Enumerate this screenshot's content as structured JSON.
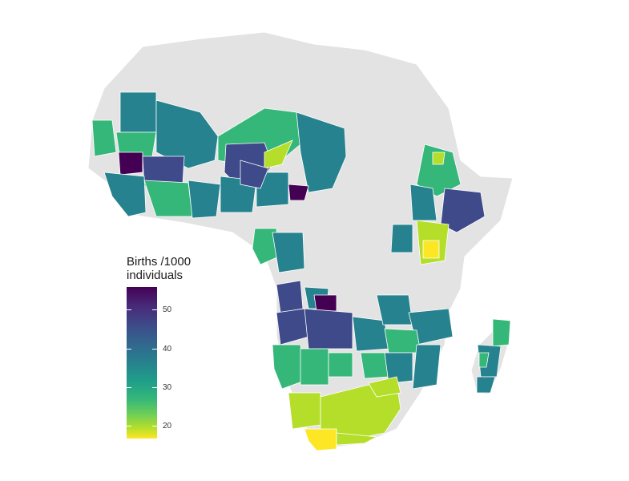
{
  "legend": {
    "title_line1": "Births /1000",
    "title_line2": "individuals",
    "scale": {
      "min": 17,
      "max": 56
    },
    "ticks": [
      {
        "value": 50,
        "label": "50"
      },
      {
        "value": 40,
        "label": "40"
      },
      {
        "value": 30,
        "label": "30"
      },
      {
        "value": 20,
        "label": "20"
      }
    ]
  },
  "colors": {
    "no_data": "#e3e3e3",
    "borders": "#ffffff",
    "palette": [
      "#440154",
      "#3e4a89",
      "#26828e",
      "#35b779",
      "#b5de2b",
      "#fde725"
    ]
  }
}
